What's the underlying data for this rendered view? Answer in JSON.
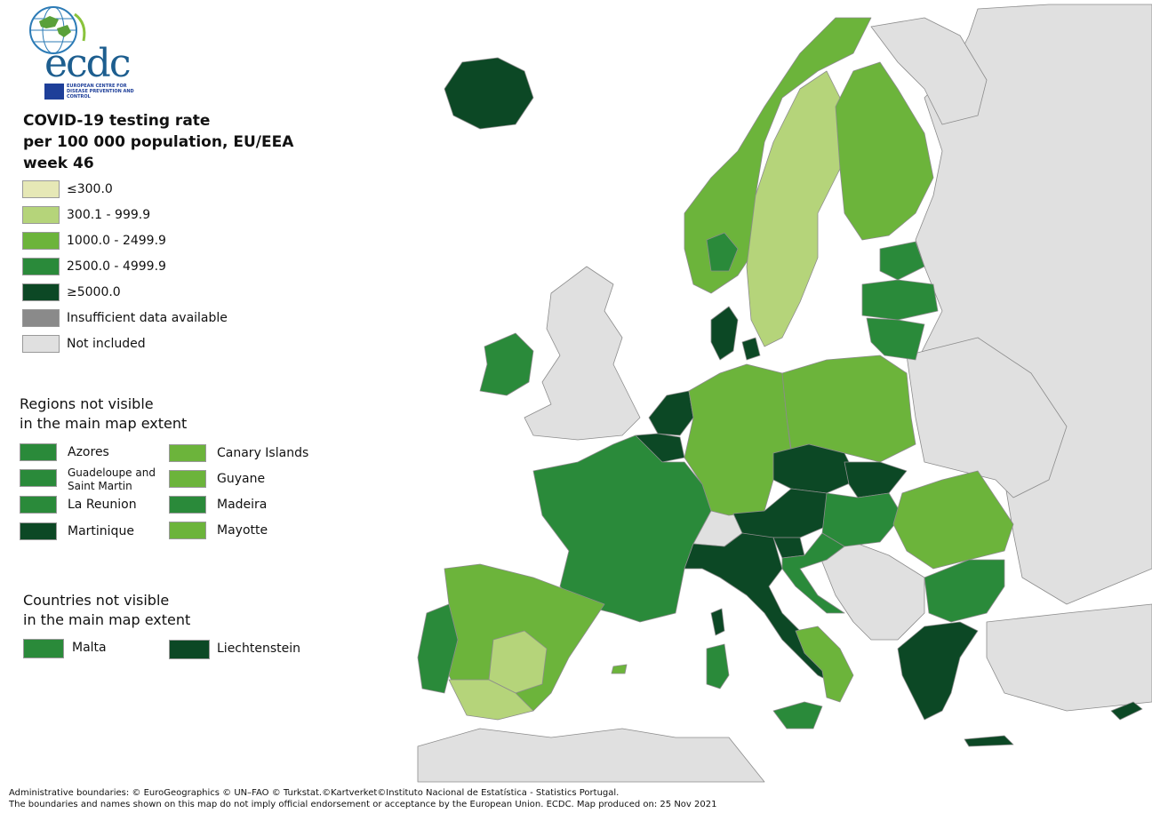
{
  "logo": {
    "wordmark": "ecdc",
    "subtitle": "EUROPEAN CENTRE FOR DISEASE PREVENTION AND CONTROL"
  },
  "title": {
    "line1": "COVID-19 testing rate",
    "line2": "per 100 000 population, EU/EEA",
    "line3": "week 46"
  },
  "colors": {
    "c1": "#e6e8b6",
    "c2": "#b5d47a",
    "c3": "#6cb43b",
    "c4": "#2a8a3a",
    "c5": "#0c4825",
    "insufficient": "#8a8a8a",
    "not_included": "#e0e0e0",
    "sea": "#ffffff",
    "border": "#777777"
  },
  "legend": [
    {
      "label": "≤300.0",
      "color": "#e6e8b6"
    },
    {
      "label": "300.1 - 999.9",
      "color": "#b5d47a"
    },
    {
      "label": "1000.0 - 2499.9",
      "color": "#6cb43b"
    },
    {
      "label": "2500.0 - 4999.9",
      "color": "#2a8a3a"
    },
    {
      "label": "≥5000.0",
      "color": "#0c4825"
    },
    {
      "label": "Insufficient data available",
      "color": "#8a8a8a"
    },
    {
      "label": "Not included",
      "color": "#e0e0e0"
    }
  ],
  "regions_title": {
    "line1": "Regions not visible",
    "line2": "in the main map extent"
  },
  "regions": [
    {
      "label": "Azores",
      "color": "#2a8a3a"
    },
    {
      "label": "Guadeloupe and Saint Martin",
      "color": "#2a8a3a"
    },
    {
      "label": "La Reunion",
      "color": "#2a8a3a"
    },
    {
      "label": "Martinique",
      "color": "#0c4825"
    },
    {
      "label": "Canary Islands",
      "color": "#6cb43b"
    },
    {
      "label": "Guyane",
      "color": "#6cb43b"
    },
    {
      "label": "Madeira",
      "color": "#2a8a3a"
    },
    {
      "label": "Mayotte",
      "color": "#6cb43b"
    }
  ],
  "countries_title": {
    "line1": "Countries not visible",
    "line2": "in the main map extent"
  },
  "countries": [
    {
      "label": "Malta",
      "color": "#2a8a3a"
    },
    {
      "label": "Liechtenstein",
      "color": "#0c4825"
    }
  ],
  "footer": {
    "line1": "Administrative boundaries: © EuroGeographics © UN–FAO © Turkstat.©Kartverket©Instituto Nacional de Estatística - Statistics Portugal.",
    "line2": "The boundaries and names shown on this map do not imply official endorsement or acceptance by the European Union. ECDC. Map produced on: 25 Nov 2021"
  }
}
